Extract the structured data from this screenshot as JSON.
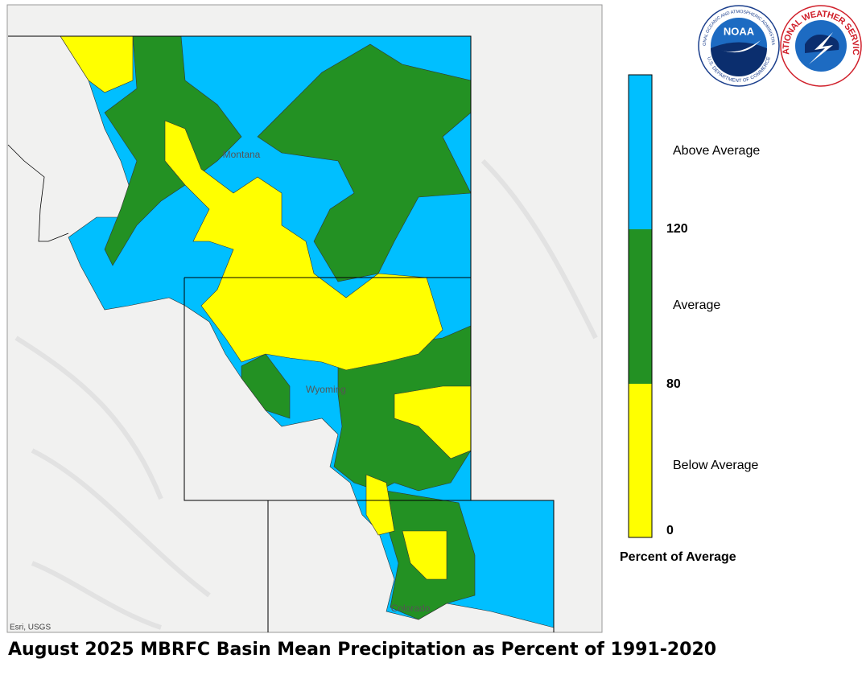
{
  "title": "August 2025 MBRFC Basin Mean Precipitation as Percent of 1991-2020",
  "map": {
    "states": [
      "Montana",
      "Wyoming",
      "Colorado"
    ],
    "attribution": "Esri, USGS"
  },
  "legend": {
    "title": "Percent of Average",
    "classes": [
      {
        "label": "Above Average",
        "color": "#00bfff"
      },
      {
        "label": "Average",
        "color": "#239123"
      },
      {
        "label": "Below Average",
        "color": "#ffff00"
      }
    ],
    "breaks": [
      120,
      80,
      0
    ]
  },
  "logos": {
    "noaa": {
      "name": "NOAA",
      "ring_top": "NATIONAL OCEANIC AND ATMOSPHERIC ADMINISTRATION",
      "ring_bottom": "U.S. DEPARTMENT OF COMMERCE"
    },
    "nws": {
      "ring": "NATIONAL WEATHER SERVICE"
    }
  }
}
